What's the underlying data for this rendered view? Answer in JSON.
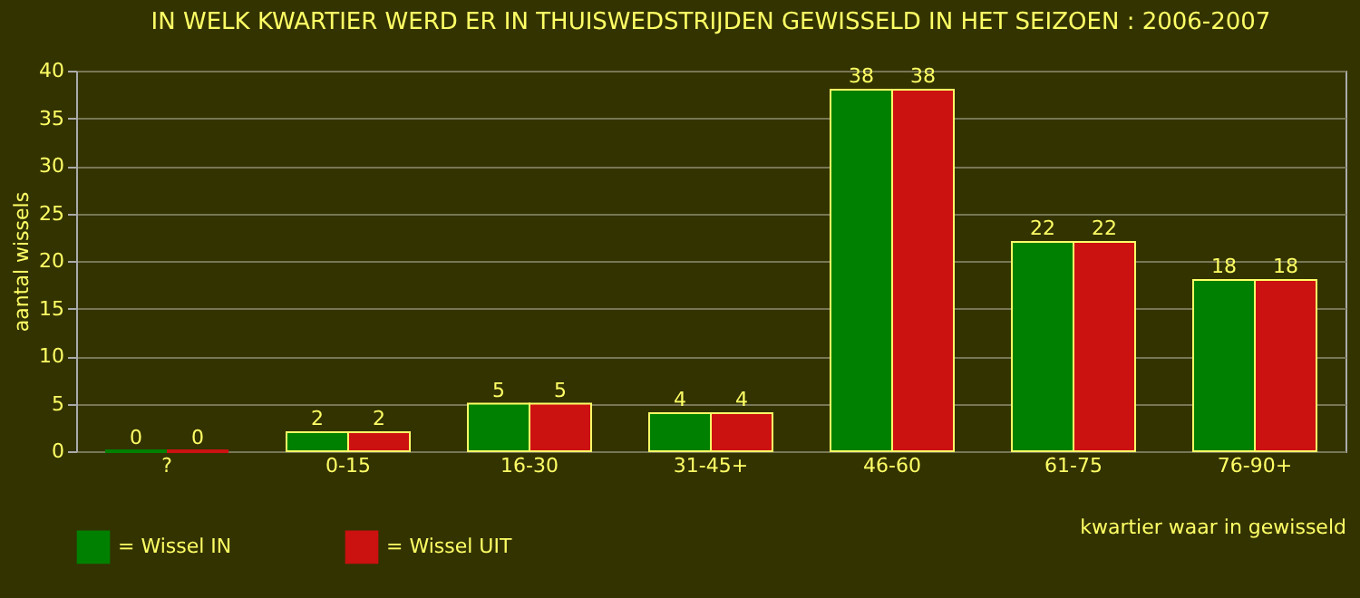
{
  "chart_data": {
    "type": "bar",
    "title": "IN WELK KWARTIER WERD ER IN THUISWEDSTRIJDEN GEWISSELD IN HET SEIZOEN : 2006-2007",
    "xlabel": "kwartier waar in gewisseld",
    "ylabel": "aantal wissels",
    "categories": [
      "?",
      "0-15",
      "16-30",
      "31-45+",
      "46-60",
      "61-75",
      "76-90+"
    ],
    "series": [
      {
        "name": "= Wissel IN",
        "color": "#008000",
        "values": [
          0,
          2,
          5,
          4,
          38,
          22,
          18
        ]
      },
      {
        "name": "= Wissel UIT",
        "color": "#cc1111",
        "values": [
          0,
          2,
          5,
          4,
          38,
          22,
          18
        ]
      }
    ],
    "ylim": [
      0,
      40
    ],
    "yticks": [
      0,
      5,
      10,
      15,
      20,
      25,
      30,
      35,
      40
    ],
    "grid": "y",
    "legend": "bottom",
    "data_labels": true
  }
}
